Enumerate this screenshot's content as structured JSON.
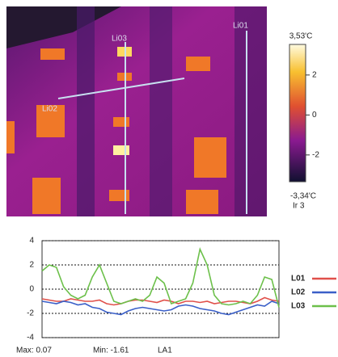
{
  "thermal_image": {
    "line_labels": [
      "Li01",
      "Li03",
      "Li02"
    ],
    "scale_range": [
      {
        "value": -3.34,
        "label": "-3,34'C"
      },
      {
        "value": 3.53,
        "label": "3,53'C"
      }
    ],
    "scale_ticks": [
      2,
      0,
      -2
    ],
    "palette": "Ir 3"
  },
  "chart_data": {
    "type": "line",
    "series": [
      {
        "name": "L01",
        "color": "#e0504a",
        "values": [
          -0.8,
          -0.9,
          -1.0,
          -1.0,
          -0.8,
          -0.9,
          -1.0,
          -1.0,
          -0.9,
          -1.2,
          -1.3,
          -1.2,
          -1.0,
          -0.9,
          -0.9,
          -1.0,
          -1.1,
          -0.9,
          -1.0,
          -1.2,
          -1.0,
          -1.0,
          -1.1,
          -1.0,
          -1.2,
          -1.1,
          -1.0,
          -1.0,
          -1.1,
          -1.2,
          -1.0,
          -0.7,
          -0.9,
          -1.0
        ]
      },
      {
        "name": "L02",
        "color": "#3a5fc8",
        "values": [
          -1.0,
          -1.1,
          -1.2,
          -1.0,
          -1.1,
          -1.3,
          -1.2,
          -1.5,
          -1.6,
          -1.9,
          -2.0,
          -2.1,
          -1.8,
          -1.6,
          -1.5,
          -1.6,
          -1.7,
          -1.8,
          -1.7,
          -1.4,
          -1.3,
          -1.4,
          -1.6,
          -1.7,
          -1.8,
          -2.0,
          -2.1,
          -1.9,
          -1.7,
          -1.5,
          -1.3,
          -1.4,
          -1.0,
          -1.2
        ]
      },
      {
        "name": "L03",
        "color": "#6cc04a",
        "values": [
          1.5,
          2.0,
          1.8,
          0.2,
          -0.5,
          -0.8,
          -0.5,
          1.0,
          2.0,
          0.5,
          -1.0,
          -1.2,
          -1.0,
          -0.8,
          -1.0,
          -0.5,
          1.0,
          0.5,
          -1.2,
          -1.0,
          -0.8,
          0.5,
          3.3,
          2.0,
          -0.5,
          -1.2,
          -1.3,
          -1.2,
          -1.0,
          -1.2,
          -0.5,
          1.0,
          0.8,
          -1.5
        ]
      }
    ],
    "ylim": [
      -4,
      4
    ],
    "yticks": [
      4,
      2,
      0,
      -2,
      -4
    ],
    "grid": true,
    "stats": [
      "Max: 0.07",
      "Min: -1.61",
      "LA1"
    ]
  }
}
